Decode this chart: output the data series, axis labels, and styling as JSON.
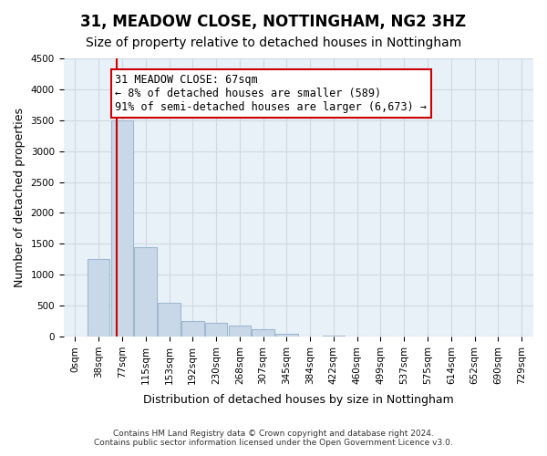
{
  "title": "31, MEADOW CLOSE, NOTTINGHAM, NG2 3HZ",
  "subtitle": "Size of property relative to detached houses in Nottingham",
  "xlabel": "Distribution of detached houses by size in Nottingham",
  "ylabel": "Number of detached properties",
  "footer_line1": "Contains HM Land Registry data © Crown copyright and database right 2024.",
  "footer_line2": "Contains public sector information licensed under the Open Government Licence v3.0.",
  "bin_labels": [
    "0sqm",
    "38sqm",
    "77sqm",
    "115sqm",
    "153sqm",
    "192sqm",
    "230sqm",
    "268sqm",
    "307sqm",
    "345sqm",
    "384sqm",
    "422sqm",
    "460sqm",
    "499sqm",
    "537sqm",
    "575sqm",
    "614sqm",
    "652sqm",
    "690sqm",
    "729sqm"
  ],
  "bar_values": [
    0,
    1250,
    3500,
    1450,
    550,
    250,
    220,
    175,
    125,
    50,
    0,
    15,
    0,
    0,
    0,
    0,
    0,
    0,
    0,
    0
  ],
  "bar_color": "#c8d8e8",
  "bar_edge_color": "#a0b8d0",
  "grid_color": "#d0d8e0",
  "background_color": "#e8f0f8",
  "red_line_x": 1.76,
  "annotation_text": "31 MEADOW CLOSE: 67sqm\n← 8% of detached houses are smaller (589)\n91% of semi-detached houses are larger (6,673) →",
  "annotation_box_color": "#cc0000",
  "ylim": [
    0,
    4500
  ],
  "yticks": [
    0,
    500,
    1000,
    1500,
    2000,
    2500,
    3000,
    3500,
    4000,
    4500
  ],
  "title_fontsize": 12,
  "subtitle_fontsize": 10,
  "annotation_fontsize": 8.5,
  "ylabel_fontsize": 9,
  "xlabel_fontsize": 9,
  "tick_fontsize": 7.5
}
